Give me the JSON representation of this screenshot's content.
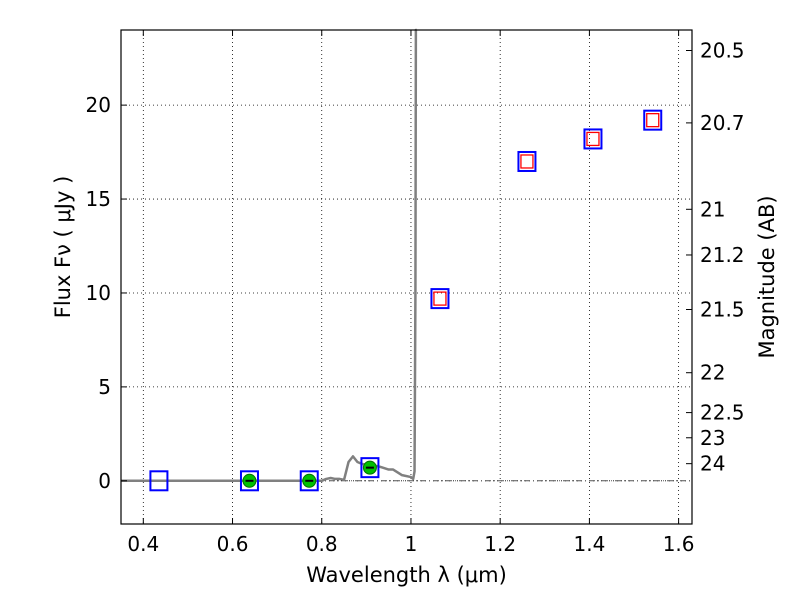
{
  "chart_data": {
    "type": "scatter",
    "xlabel": "Wavelength  λ (μm)",
    "ylabel": "Flux  Fν  ( μJy )",
    "y2label": "Magnitude (AB)",
    "xlim": [
      0.35,
      1.63
    ],
    "ylim": [
      -2.3,
      24
    ],
    "grid": true,
    "x_ticks": [
      {
        "value": 0.4,
        "label": "0.4"
      },
      {
        "value": 0.6,
        "label": "0.6"
      },
      {
        "value": 0.8,
        "label": "0.8"
      },
      {
        "value": 1.0,
        "label": "1"
      },
      {
        "value": 1.2,
        "label": "1.2"
      },
      {
        "value": 1.4,
        "label": "1.4"
      },
      {
        "value": 1.6,
        "label": "1.6"
      }
    ],
    "y_ticks": [
      {
        "value": 0,
        "label": "0"
      },
      {
        "value": 5,
        "label": "5"
      },
      {
        "value": 10,
        "label": "10"
      },
      {
        "value": 15,
        "label": "15"
      },
      {
        "value": 20,
        "label": "20"
      }
    ],
    "y2_ticks": [
      {
        "value": 20.5,
        "label": "20.5"
      },
      {
        "value": 20.7,
        "label": "20.7"
      },
      {
        "value": 21.0,
        "label": "21"
      },
      {
        "value": 21.2,
        "label": "21.2"
      },
      {
        "value": 21.5,
        "label": "21.5"
      },
      {
        "value": 22.0,
        "label": "22"
      },
      {
        "value": 22.5,
        "label": "22.5"
      },
      {
        "value": 23.0,
        "label": "23"
      },
      {
        "value": 24.0,
        "label": "24"
      }
    ],
    "model_sed": {
      "color": "#808080",
      "x": [
        0.35,
        0.8,
        0.81,
        0.82,
        0.83,
        0.84,
        0.85,
        0.86,
        0.87,
        0.88,
        0.89,
        0.9,
        0.91,
        0.93,
        0.95,
        0.96,
        0.98,
        1.0,
        1.005,
        1.008,
        1.01,
        1.011,
        1.013
      ],
      "y": [
        0.0,
        0.0,
        0.1,
        0.15,
        0.1,
        0.1,
        0.05,
        1.0,
        1.3,
        1.0,
        0.9,
        0.85,
        0.85,
        0.75,
        0.6,
        0.6,
        0.3,
        0.2,
        0.1,
        0.5,
        10.0,
        24.0,
        24.0
      ]
    },
    "zero_line": {
      "y": 0,
      "color": "#555555"
    },
    "series": [
      {
        "marker": "blue-open-square",
        "color": "#0000ff",
        "x": [
          0.435,
          0.638,
          0.772,
          0.908,
          1.065,
          1.26,
          1.408,
          1.542
        ],
        "y": [
          0.0,
          0.0,
          0.0,
          0.7,
          9.7,
          17.0,
          18.2,
          19.2
        ]
      },
      {
        "marker": "red-open-square",
        "color": "#ff0000",
        "x": [
          1.065,
          1.26,
          1.408,
          1.542
        ],
        "y": [
          9.7,
          17.0,
          18.2,
          19.2
        ]
      },
      {
        "marker": "green-filled-circle",
        "color": "#00c000",
        "x": [
          0.638,
          0.772,
          0.908
        ],
        "y": [
          0.0,
          0.0,
          0.7
        ]
      }
    ]
  }
}
